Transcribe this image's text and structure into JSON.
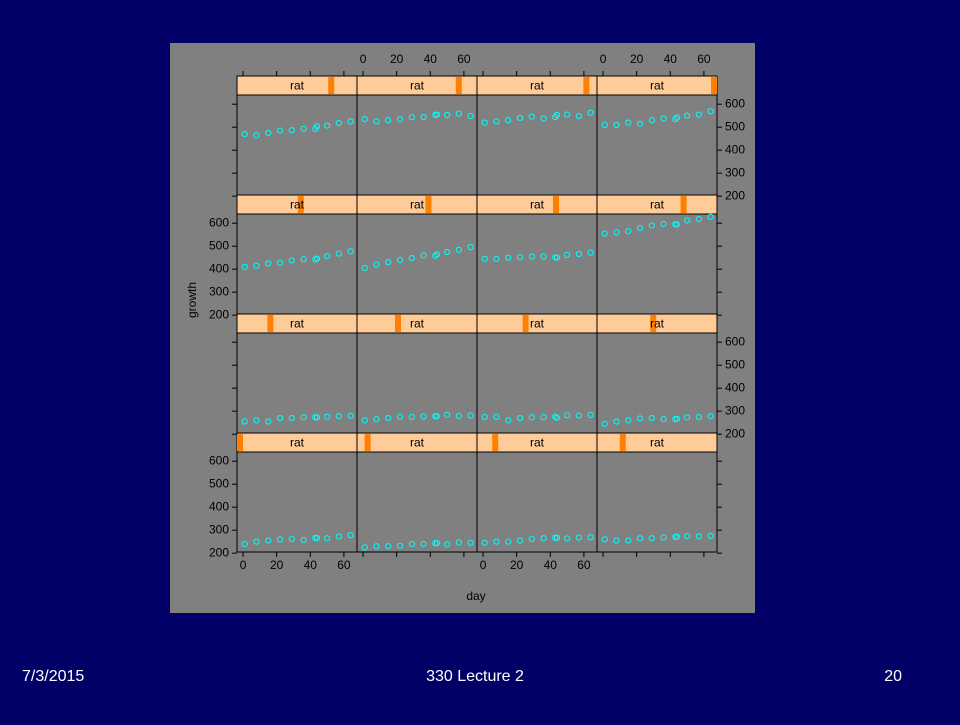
{
  "footer": {
    "date": "7/3/2015",
    "course": "330 Lecture 2",
    "page": "20"
  },
  "chart_data": {
    "type": "scatter",
    "x_label": "day",
    "y_label": "growth",
    "x": [
      1,
      8,
      15,
      22,
      29,
      36,
      43,
      44,
      50,
      57,
      64
    ],
    "xlim": [
      -3.6,
      67.8
    ],
    "xticks": [
      0,
      20,
      40,
      60
    ],
    "ylim": [
      205,
      640
    ],
    "yticks": [
      200,
      300,
      400,
      500,
      600
    ],
    "point_color": "#00ffff",
    "strip_color": "#ffcc99",
    "level_color": "#ff8000",
    "panels": [
      {
        "strip": "rat",
        "level": 1,
        "values": [
          240,
          250,
          255,
          260,
          262,
          258,
          266,
          266,
          265,
          272,
          278
        ]
      },
      {
        "strip": "rat",
        "level": 2,
        "values": [
          225,
          230,
          230,
          232,
          240,
          240,
          243,
          244,
          238,
          247,
          245
        ]
      },
      {
        "strip": "rat",
        "level": 3,
        "values": [
          245,
          250,
          250,
          255,
          262,
          265,
          267,
          267,
          264,
          268,
          269
        ]
      },
      {
        "strip": "rat",
        "level": 4,
        "values": [
          260,
          255,
          255,
          265,
          265,
          268,
          270,
          272,
          274,
          273,
          275
        ]
      },
      {
        "strip": "rat",
        "level": 5,
        "values": [
          255,
          260,
          255,
          270,
          270,
          273,
          274,
          273,
          276,
          278,
          280
        ]
      },
      {
        "strip": "rat",
        "level": 6,
        "values": [
          260,
          265,
          270,
          275,
          275,
          277,
          278,
          278,
          284,
          279,
          281
        ]
      },
      {
        "strip": "rat",
        "level": 7,
        "values": [
          275,
          275,
          260,
          270,
          273,
          274,
          276,
          271,
          282,
          281,
          284
        ]
      },
      {
        "strip": "rat",
        "level": 8,
        "values": [
          245,
          255,
          260,
          268,
          270,
          265,
          265,
          267,
          273,
          274,
          278
        ]
      },
      {
        "strip": "rat",
        "level": 9,
        "values": [
          410,
          415,
          425,
          428,
          438,
          443,
          442,
          446,
          456,
          468,
          478
        ]
      },
      {
        "strip": "rat",
        "level": 10,
        "values": [
          405,
          420,
          430,
          440,
          448,
          460,
          458,
          464,
          475,
          484,
          496
        ]
      },
      {
        "strip": "rat",
        "level": 11,
        "values": [
          445,
          445,
          450,
          452,
          455,
          455,
          451,
          450,
          462,
          466,
          472
        ]
      },
      {
        "strip": "rat",
        "level": 12,
        "values": [
          555,
          560,
          565,
          580,
          590,
          597,
          595,
          595,
          612,
          618,
          628
        ]
      },
      {
        "strip": "rat",
        "level": 13,
        "values": [
          470,
          465,
          475,
          485,
          487,
          493,
          493,
          504,
          507,
          518,
          525
        ]
      },
      {
        "strip": "rat",
        "level": 14,
        "values": [
          535,
          525,
          530,
          535,
          543,
          544,
          553,
          555,
          553,
          559,
          548
        ]
      },
      {
        "strip": "rat",
        "level": 15,
        "values": [
          520,
          525,
          530,
          540,
          546,
          538,
          544,
          553,
          555,
          548,
          563
        ]
      },
      {
        "strip": "rat",
        "level": 16,
        "values": [
          510,
          510,
          520,
          515,
          530,
          538,
          535,
          542,
          550,
          555,
          569
        ]
      }
    ]
  }
}
